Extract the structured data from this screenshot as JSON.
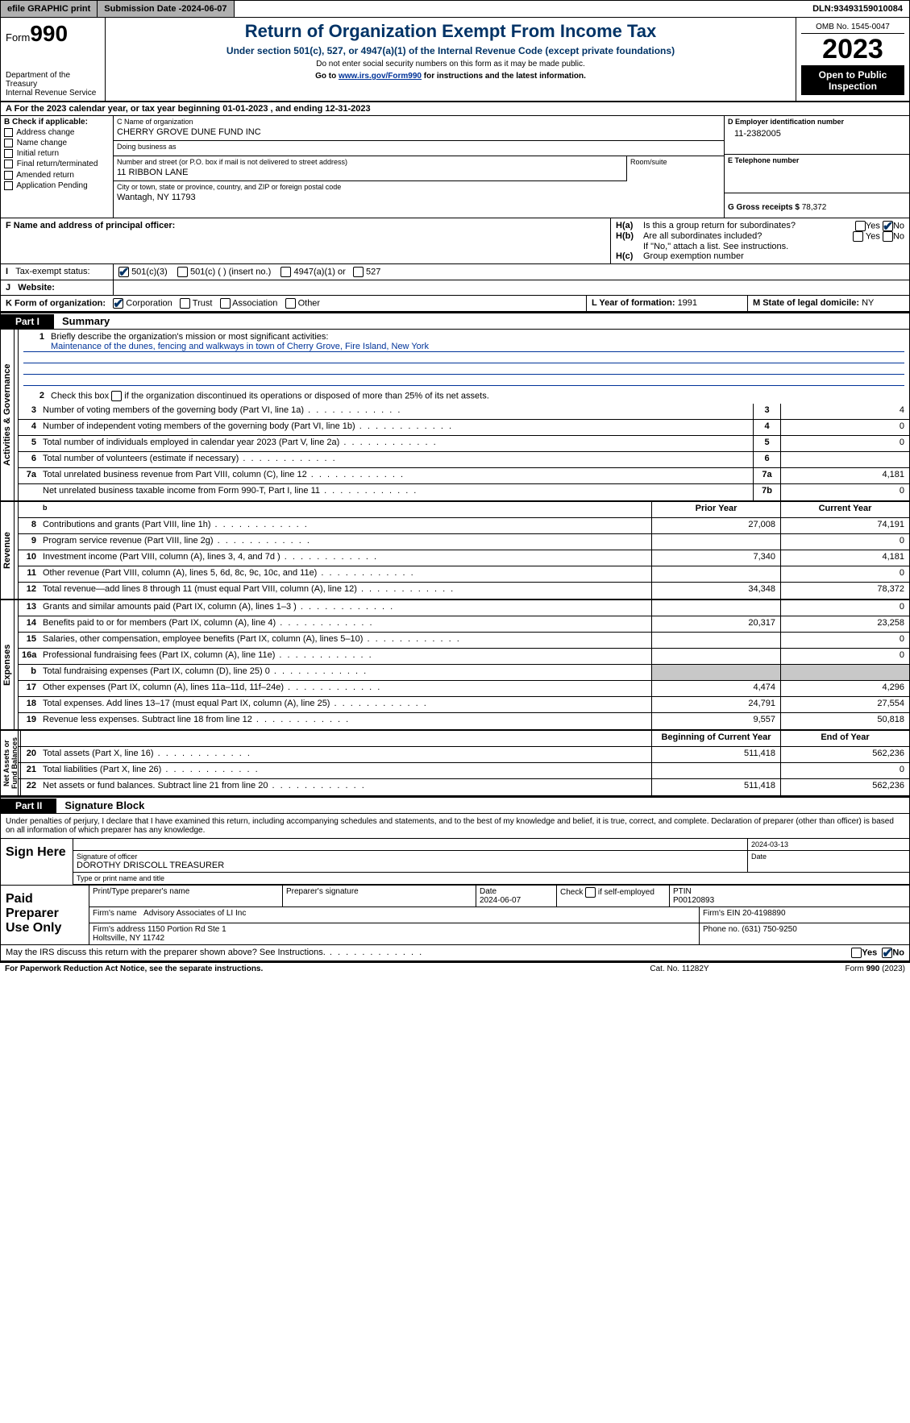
{
  "top": {
    "efile": "efile GRAPHIC print",
    "submission_label": "Submission Date - ",
    "submission_date": "2024-06-07",
    "dln_label": "DLN: ",
    "dln": "93493159010084"
  },
  "header": {
    "form_label": "Form",
    "form_number": "990",
    "dept": "Department of the Treasury\nInternal Revenue Service",
    "title": "Return of Organization Exempt From Income Tax",
    "subtitle": "Under section 501(c), 527, or 4947(a)(1) of the Internal Revenue Code (except private foundations)",
    "note1": "Do not enter social security numbers on this form as it may be made public.",
    "note2_pre": "Go to ",
    "note2_link": "www.irs.gov/Form990",
    "note2_post": " for instructions and the latest information.",
    "omb": "OMB No. 1545-0047",
    "year": "2023",
    "open": "Open to Public\nInspection"
  },
  "A": {
    "text": "For the 2023 calendar year, or tax year beginning 01-01-2023   , and ending 12-31-2023"
  },
  "B": {
    "label": "B Check if applicable:",
    "items": [
      "Address change",
      "Name change",
      "Initial return",
      "Final return/terminated",
      "Amended return",
      "Application Pending"
    ]
  },
  "C": {
    "name_label": "C Name of organization",
    "name": "CHERRY GROVE DUNE FUND INC",
    "dba_label": "Doing business as",
    "dba": "",
    "street_label": "Number and street (or P.O. box if mail is not delivered to street address)",
    "street": "11 RIBBON LANE",
    "room_label": "Room/suite",
    "room": "",
    "city_label": "City or town, state or province, country, and ZIP or foreign postal code",
    "city": "Wantagh, NY  11793"
  },
  "D": {
    "ein_label": "D Employer identification number",
    "ein": "11-2382005",
    "phone_label": "E Telephone number",
    "phone": "",
    "gross_label": "G Gross receipts $ ",
    "gross": "78,372"
  },
  "F": {
    "label": "F   Name and address of principal officer:",
    "value": ""
  },
  "H": {
    "a": "Is this a group return for subordinates?",
    "b": "Are all subordinates included?",
    "b_note": "If \"No,\" attach a list. See instructions.",
    "c": "Group exemption number",
    "yes": "Yes",
    "no": "No"
  },
  "I": {
    "label": "Tax-exempt status:",
    "opt1": "501(c)(3)",
    "opt2": "501(c) (   ) (insert no.)",
    "opt3": "4947(a)(1) or",
    "opt4": "527"
  },
  "J": {
    "label": "Website:",
    "value": ""
  },
  "K": {
    "label": "K Form of organization:",
    "opts": [
      "Corporation",
      "Trust",
      "Association",
      "Other"
    ],
    "L_label": "L Year of formation: ",
    "L_val": "1991",
    "M_label": "M State of legal domicile: ",
    "M_val": "NY"
  },
  "part1": {
    "label": "Part I",
    "name": "Summary"
  },
  "summary": {
    "mission_label": "Briefly describe the organization's mission or most significant activities:",
    "mission": "Maintenance of the dunes, fencing and walkways in town of Cherry Grove, Fire Island, New York",
    "line2": "Check this box      if the organization discontinued its operations or disposed of more than 25% of its net assets.",
    "gov": [
      {
        "n": "3",
        "d": "Number of voting members of the governing body (Part VI, line 1a)",
        "bn": "3",
        "v": "4"
      },
      {
        "n": "4",
        "d": "Number of independent voting members of the governing body (Part VI, line 1b)",
        "bn": "4",
        "v": "0"
      },
      {
        "n": "5",
        "d": "Total number of individuals employed in calendar year 2023 (Part V, line 2a)",
        "bn": "5",
        "v": "0"
      },
      {
        "n": "6",
        "d": "Total number of volunteers (estimate if necessary)",
        "bn": "6",
        "v": ""
      },
      {
        "n": "7a",
        "d": "Total unrelated business revenue from Part VIII, column (C), line 12",
        "bn": "7a",
        "v": "4,181"
      },
      {
        "n": "",
        "d": "Net unrelated business taxable income from Form 990-T, Part I, line 11",
        "bn": "7b",
        "v": "0"
      }
    ],
    "prior_label": "Prior Year",
    "current_label": "Current Year",
    "rev": [
      {
        "n": "8",
        "d": "Contributions and grants (Part VIII, line 1h)",
        "p": "27,008",
        "c": "74,191"
      },
      {
        "n": "9",
        "d": "Program service revenue (Part VIII, line 2g)",
        "p": "",
        "c": "0"
      },
      {
        "n": "10",
        "d": "Investment income (Part VIII, column (A), lines 3, 4, and 7d )",
        "p": "7,340",
        "c": "4,181"
      },
      {
        "n": "11",
        "d": "Other revenue (Part VIII, column (A), lines 5, 6d, 8c, 9c, 10c, and 11e)",
        "p": "",
        "c": "0"
      },
      {
        "n": "12",
        "d": "Total revenue—add lines 8 through 11 (must equal Part VIII, column (A), line 12)",
        "p": "34,348",
        "c": "78,372"
      }
    ],
    "exp": [
      {
        "n": "13",
        "d": "Grants and similar amounts paid (Part IX, column (A), lines 1–3 )",
        "p": "",
        "c": "0"
      },
      {
        "n": "14",
        "d": "Benefits paid to or for members (Part IX, column (A), line 4)",
        "p": "20,317",
        "c": "23,258"
      },
      {
        "n": "15",
        "d": "Salaries, other compensation, employee benefits (Part IX, column (A), lines 5–10)",
        "p": "",
        "c": "0"
      },
      {
        "n": "16a",
        "d": "Professional fundraising fees (Part IX, column (A), line 11e)",
        "p": "",
        "c": "0"
      },
      {
        "n": "b",
        "d": "Total fundraising expenses (Part IX, column (D), line 25) 0",
        "p": "gray",
        "c": "gray"
      },
      {
        "n": "17",
        "d": "Other expenses (Part IX, column (A), lines 11a–11d, 11f–24e)",
        "p": "4,474",
        "c": "4,296"
      },
      {
        "n": "18",
        "d": "Total expenses. Add lines 13–17 (must equal Part IX, column (A), line 25)",
        "p": "24,791",
        "c": "27,554"
      },
      {
        "n": "19",
        "d": "Revenue less expenses. Subtract line 18 from line 12",
        "p": "9,557",
        "c": "50,818"
      }
    ],
    "boy_label": "Beginning of Current Year",
    "eoy_label": "End of Year",
    "net": [
      {
        "n": "20",
        "d": "Total assets (Part X, line 16)",
        "p": "511,418",
        "c": "562,236"
      },
      {
        "n": "21",
        "d": "Total liabilities (Part X, line 26)",
        "p": "",
        "c": "0"
      },
      {
        "n": "22",
        "d": "Net assets or fund balances. Subtract line 21 from line 20",
        "p": "511,418",
        "c": "562,236"
      }
    ],
    "vlabels": {
      "gov": "Activities & Governance",
      "rev": "Revenue",
      "exp": "Expenses",
      "net": "Net Assets or\nFund Balances"
    }
  },
  "part2": {
    "label": "Part II",
    "name": "Signature Block"
  },
  "sig": {
    "decl": "Under penalties of perjury, I declare that I have examined this return, including accompanying schedules and statements, and to the best of my knowledge and belief, it is true, correct, and complete. Declaration of preparer (other than officer) is based on all information of which preparer has any knowledge.",
    "sign_here": "Sign Here",
    "sig_label": "Signature of officer",
    "officer": "DOROTHY DRISCOLL TREASURER",
    "type_label": "Type or print name and title",
    "date_label": "Date",
    "date": "2024-03-13"
  },
  "prep": {
    "label": "Paid Preparer Use Only",
    "name_label": "Print/Type preparer's name",
    "name": "",
    "sig_label": "Preparer's signature",
    "date_label": "Date",
    "date": "2024-06-07",
    "self_label": "Check         if self-employed",
    "ptin_label": "PTIN",
    "ptin": "P00120893",
    "firm_name_label": "Firm's name",
    "firm_name": "Advisory Associates of LI Inc",
    "firm_ein_label": "Firm's EIN",
    "firm_ein": "20-4198890",
    "firm_addr_label": "Firm's address",
    "firm_addr": "1150 Portion Rd Ste 1\nHoltsville, NY  11742",
    "phone_label": "Phone no.",
    "phone": "(631) 750-9250"
  },
  "discuss": {
    "text": "May the IRS discuss this return with the preparer shown above? See Instructions.",
    "yes": "Yes",
    "no": "No"
  },
  "footer": {
    "left": "For Paperwork Reduction Act Notice, see the separate instructions.",
    "mid": "Cat. No. 11282Y",
    "right_pre": "Form ",
    "right_form": "990",
    "right_post": " (2023)"
  }
}
